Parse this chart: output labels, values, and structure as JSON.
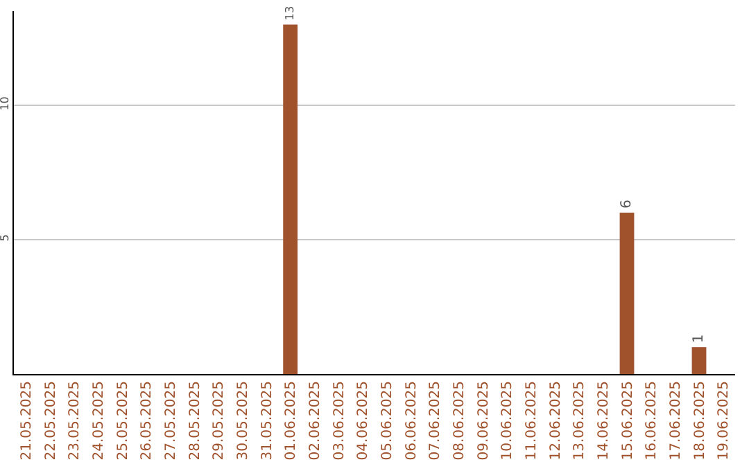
{
  "chart_data": {
    "type": "bar",
    "categories": [
      "21.05.2025",
      "22.05.2025",
      "23.05.2025",
      "24.05.2025",
      "25.05.2025",
      "26.05.2025",
      "27.05.2025",
      "28.05.2025",
      "29.05.2025",
      "30.05.2025",
      "31.05.2025",
      "01.06.2025",
      "02.06.2025",
      "03.06.2025",
      "04.06.2025",
      "05.06.2025",
      "06.06.2025",
      "07.06.2025",
      "08.06.2025",
      "09.06.2025",
      "10.06.2025",
      "11.06.2025",
      "12.06.2025",
      "13.06.2025",
      "14.06.2025",
      "15.06.2025",
      "16.06.2025",
      "17.06.2025",
      "18.06.2025",
      "19.06.2025"
    ],
    "values": [
      0,
      0,
      0,
      0,
      0,
      0,
      0,
      0,
      0,
      0,
      0,
      13,
      0,
      0,
      0,
      0,
      0,
      0,
      0,
      0,
      0,
      0,
      0,
      0,
      0,
      6,
      0,
      0,
      1,
      0
    ],
    "value_labels": [
      null,
      null,
      null,
      null,
      null,
      null,
      null,
      null,
      null,
      null,
      null,
      "13",
      null,
      null,
      null,
      null,
      null,
      null,
      null,
      null,
      null,
      null,
      null,
      null,
      null,
      "6",
      null,
      null,
      "1",
      null
    ],
    "color": "#a0522d",
    "ylim": [
      0,
      13.5
    ],
    "yticks": [
      5,
      10
    ],
    "grid": "y",
    "legend": false
  }
}
